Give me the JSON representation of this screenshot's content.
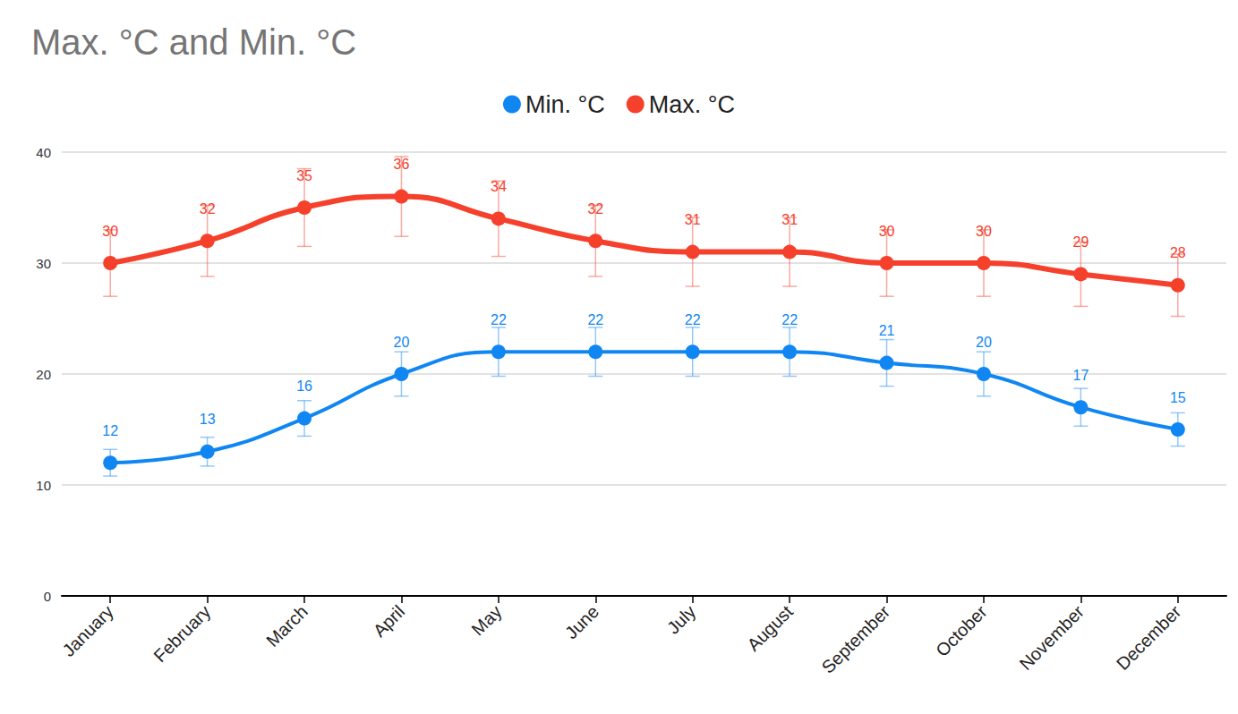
{
  "chart_data": {
    "type": "line",
    "title": "Max. °C and Min. °C",
    "categories": [
      "January",
      "February",
      "March",
      "April",
      "May",
      "June",
      "July",
      "August",
      "September",
      "October",
      "November",
      "December"
    ],
    "series": [
      {
        "name": "Min. °C",
        "color": "#0f86f2",
        "values": [
          12,
          13,
          16,
          20,
          22,
          22,
          22,
          22,
          21,
          20,
          17,
          15
        ],
        "errors": [
          1.2,
          1.3,
          1.6,
          2,
          2.2,
          2.2,
          2.2,
          2.2,
          2.1,
          2,
          1.7,
          1.5
        ]
      },
      {
        "name": "Max. °C",
        "color": "#f5402c",
        "values": [
          30,
          32,
          35,
          36,
          34,
          32,
          31,
          31,
          30,
          30,
          29,
          28
        ],
        "errors": [
          3,
          3.2,
          3.5,
          3.6,
          3.4,
          3.2,
          3.1,
          3.1,
          3,
          3,
          2.9,
          2.8
        ]
      }
    ],
    "ylim": [
      0,
      40
    ],
    "yticks": [
      0,
      10,
      20,
      30,
      40
    ],
    "grid": true,
    "legend": "top",
    "data_labels": true,
    "marker": "circle",
    "line_style": "smooth"
  }
}
